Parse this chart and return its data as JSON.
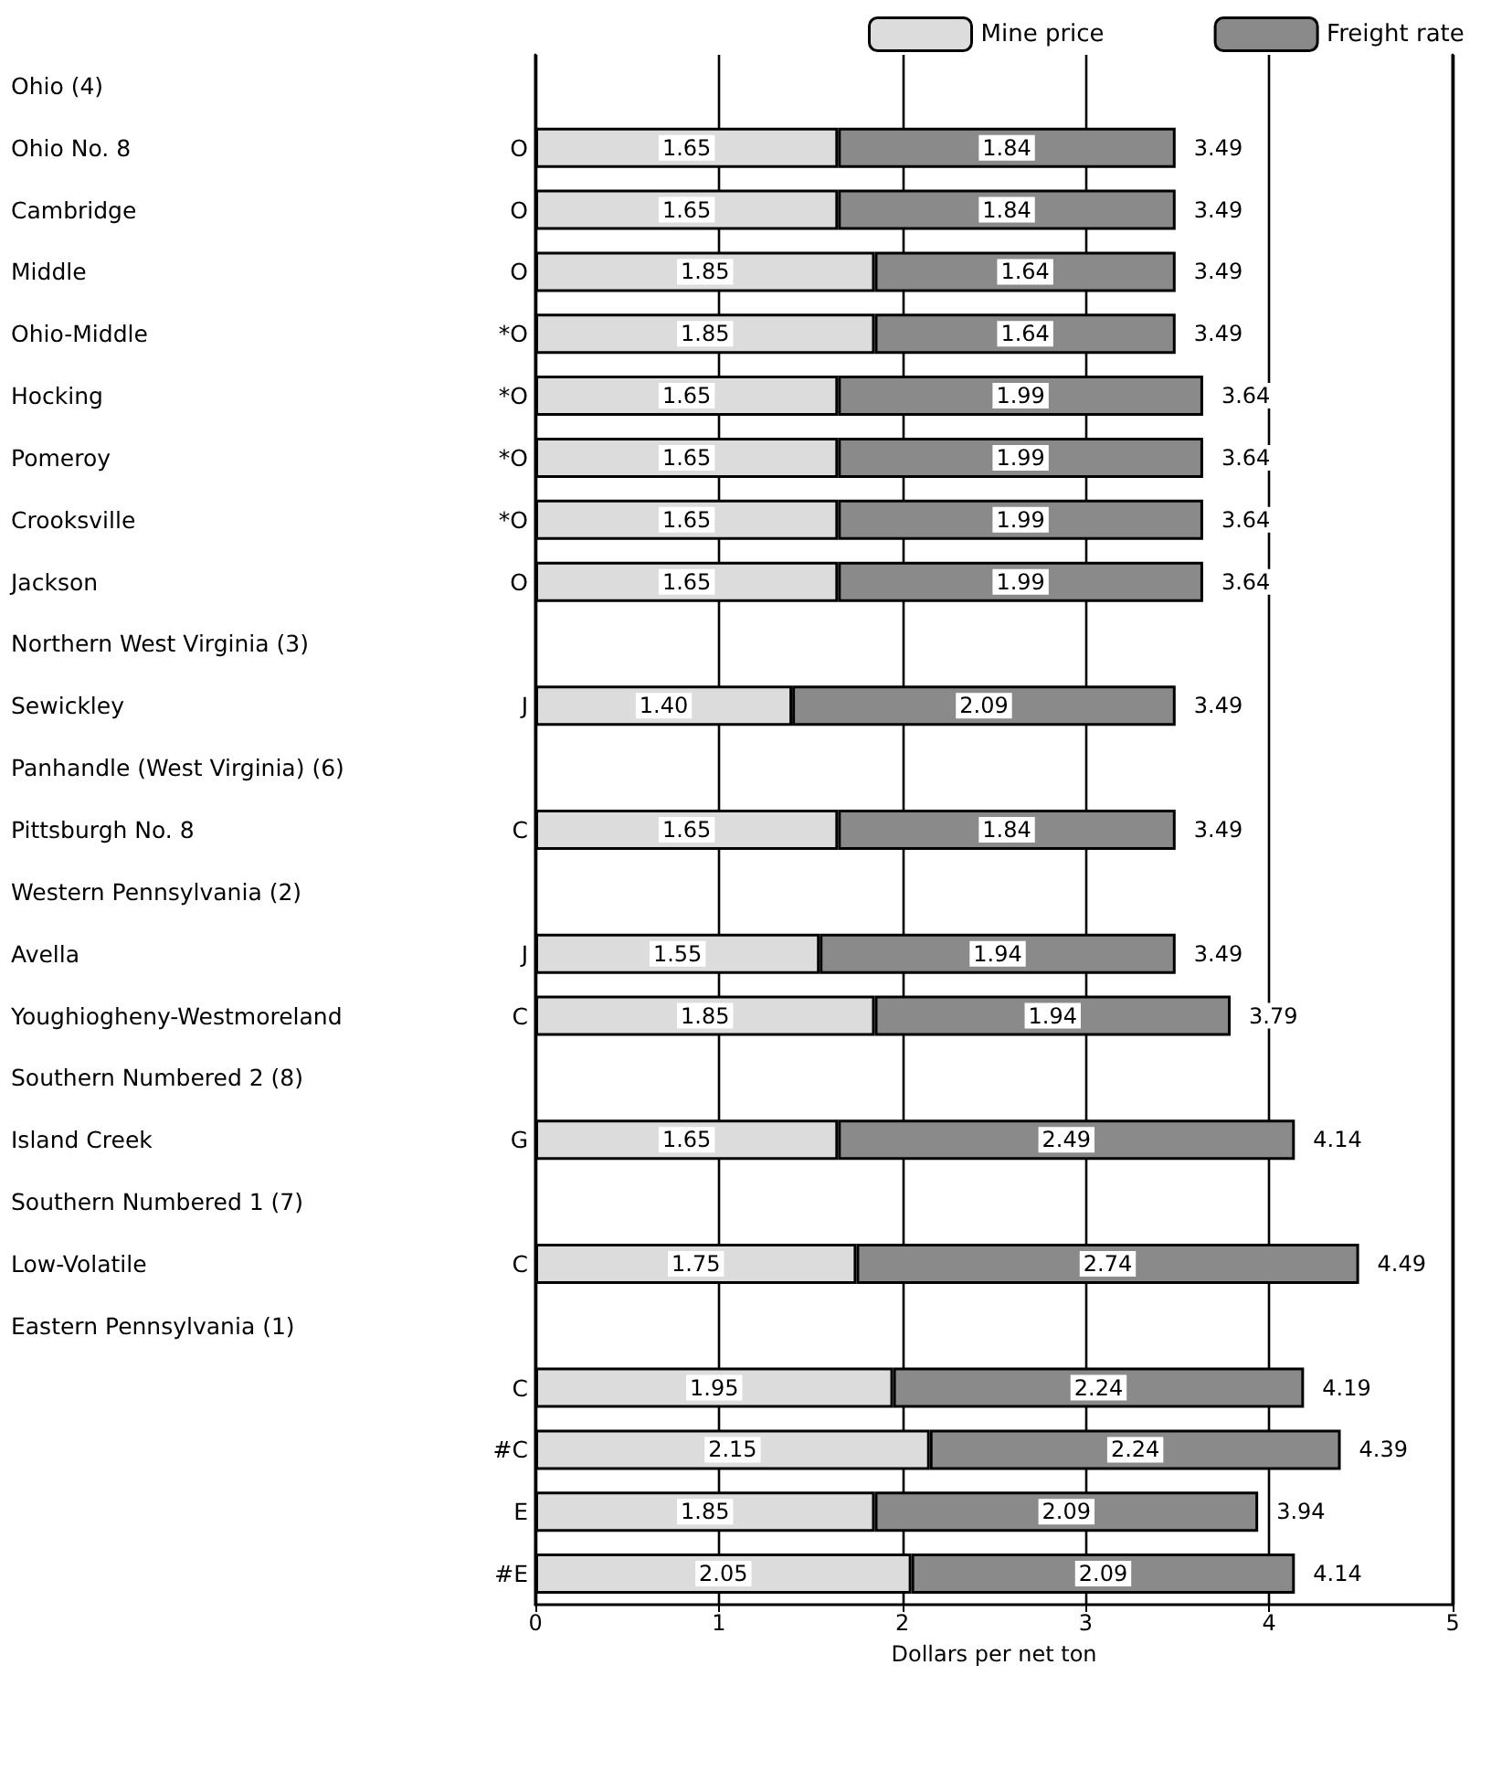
{
  "chart_data": {
    "type": "bar",
    "orientation": "horizontal",
    "stacked": true,
    "categories": [
      "Ohio (4)",
      "Ohio No. 8",
      "Cambridge",
      "Middle",
      "Ohio-Middle",
      "Hocking",
      "Pomeroy",
      "Crooksville",
      "Jackson",
      "Northern West Virginia (3)",
      "Sewickley",
      "Panhandle (West Virginia) (6)",
      "Pittsburgh No. 8",
      "Western Pennsylvania (2)",
      "Avella",
      "Youghiogheny-Westmoreland",
      "Southern Numbered 2 (8)",
      "Island Creek",
      "Southern Numbered 1 (7)",
      "Low-Volatile",
      "Eastern Pennsylvania (1)",
      null,
      null,
      null,
      null
    ],
    "y2_categories": [
      null,
      "O",
      "O",
      "O",
      "*O",
      "*O",
      "*O",
      "*O",
      "O",
      null,
      "J",
      null,
      "C",
      null,
      "J",
      "C",
      null,
      "G",
      null,
      "C",
      null,
      "C",
      "#C",
      "E",
      "#E"
    ],
    "series": [
      {
        "name": "Mine price",
        "color": "#dcdcdc",
        "values": [
          null,
          1.65,
          1.65,
          1.85,
          1.85,
          1.65,
          1.65,
          1.65,
          1.65,
          null,
          1.4,
          null,
          1.65,
          null,
          1.55,
          1.85,
          null,
          1.65,
          null,
          1.75,
          null,
          1.95,
          2.15,
          1.85,
          2.05
        ],
        "value_labels": [
          null,
          "1.65",
          "1.65",
          "1.85",
          "1.85",
          "1.65",
          "1.65",
          "1.65",
          "1.65",
          null,
          "1.40",
          null,
          "1.65",
          null,
          "1.55",
          "1.85",
          null,
          "1.65",
          null,
          "1.75",
          null,
          "1.95",
          "2.15",
          "1.85",
          "2.05"
        ]
      },
      {
        "name": "Freight rate",
        "color": "#8a8a8a",
        "values": [
          null,
          1.84,
          1.84,
          1.64,
          1.64,
          1.99,
          1.99,
          1.99,
          1.99,
          null,
          2.09,
          null,
          1.84,
          null,
          1.94,
          1.94,
          null,
          2.49,
          null,
          2.74,
          null,
          2.24,
          2.24,
          2.09,
          2.09
        ],
        "value_labels": [
          null,
          "1.84",
          "1.84",
          "1.64",
          "1.64",
          "1.99",
          "1.99",
          "1.99",
          "1.99",
          null,
          "2.09",
          null,
          "1.84",
          null,
          "1.94",
          "1.94",
          null,
          "2.49",
          null,
          "2.74",
          null,
          "2.24",
          "2.24",
          "2.09",
          "2.09"
        ]
      }
    ],
    "totals": [
      null,
      "3.49",
      "3.49",
      "3.49",
      "3.49",
      "3.64",
      "3.64",
      "3.64",
      "3.64",
      null,
      "3.49",
      null,
      "3.49",
      null,
      "3.49",
      "3.79",
      null,
      "4.14",
      null,
      "4.49",
      null,
      "4.19",
      "4.39",
      "3.94",
      "4.14"
    ],
    "xlabel": "Dollars per net ton",
    "xlim": [
      0,
      5
    ],
    "xticks": [
      0,
      1,
      2,
      3,
      4,
      5
    ],
    "grid": "x",
    "legend": "top"
  }
}
